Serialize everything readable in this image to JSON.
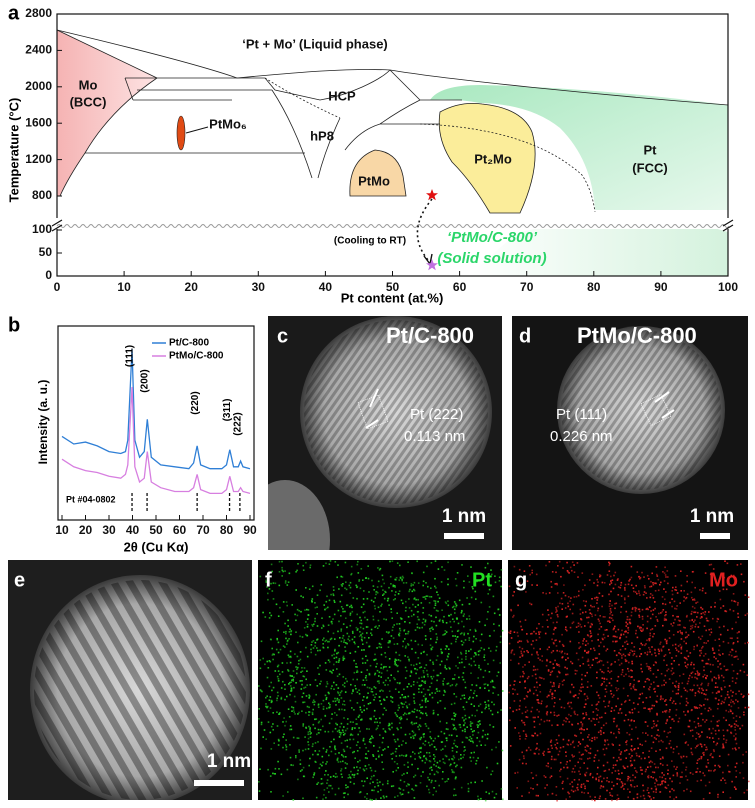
{
  "panel_a": {
    "label": "a",
    "title": "‘Pt + Mo’ (Liquid phase)",
    "xlabel": "Pt content (at.%)",
    "ylabel": "Temperature (°C)",
    "xlim": [
      0,
      100
    ],
    "xticks": [
      0,
      10,
      20,
      30,
      40,
      50,
      60,
      70,
      80,
      90,
      100
    ],
    "ylim_upper": [
      800,
      2800
    ],
    "yticks_upper": [
      800,
      1200,
      1600,
      2000,
      2400,
      2800
    ],
    "ylim_lower": [
      0,
      100
    ],
    "yticks_lower": [
      0,
      50,
      100
    ],
    "regions": {
      "mo_bcc": [
        "Mo",
        "(BCC)"
      ],
      "ptmo6": "PtMo₆",
      "hcp": "HCP",
      "hp8": "hP8",
      "ptmo": "PtMo",
      "pt2mo": "Pt₂Mo",
      "pt_fcc": [
        "Pt",
        "(FCC)"
      ]
    },
    "cooling": "(Cooling to RT)",
    "sample": [
      "‘PtMo/C-800’",
      "(Solid solution)"
    ]
  },
  "panel_b": {
    "type": "line",
    "label": "b",
    "xlabel": "2θ (Cu Kα)",
    "ylabel": "Intensity (a. u.)",
    "xlim": [
      10,
      90
    ],
    "xticks": [
      10,
      20,
      30,
      40,
      50,
      60,
      70,
      80,
      90
    ],
    "ylim": [
      0,
      10
    ],
    "x": [
      10,
      15,
      20,
      25,
      30,
      35,
      37,
      38,
      39.8,
      41,
      43,
      45,
      46.3,
      48,
      52,
      58,
      64,
      66,
      67.5,
      69,
      73,
      78,
      80,
      81.4,
      83,
      85,
      86,
      87,
      90
    ],
    "series": [
      {
        "name": "Pt/C-800",
        "color": "#2f7fd6",
        "values": [
          4.4,
          4.0,
          4.1,
          3.9,
          3.6,
          3.5,
          3.6,
          4.2,
          9.0,
          4.2,
          3.3,
          3.6,
          5.3,
          3.3,
          2.9,
          2.8,
          2.7,
          3.0,
          3.9,
          2.9,
          2.7,
          2.7,
          2.9,
          3.7,
          2.8,
          2.8,
          3.1,
          2.8,
          2.7
        ]
      },
      {
        "name": "PtMo/C-800",
        "color": "#d77fe0",
        "values": [
          3.2,
          2.8,
          2.6,
          2.5,
          2.3,
          2.2,
          2.4,
          2.9,
          7.0,
          2.8,
          2.0,
          2.2,
          3.6,
          2.0,
          1.7,
          1.5,
          1.5,
          1.7,
          2.4,
          1.6,
          1.4,
          1.4,
          1.6,
          2.3,
          1.5,
          1.5,
          1.7,
          1.5,
          1.4
        ]
      }
    ],
    "reference": {
      "name": "Pt #04-0802",
      "positions": [
        39.8,
        46.2,
        67.5,
        81.3,
        85.7
      ]
    },
    "peak_labels": [
      "(111)",
      "(200)",
      "(220)",
      "(311)",
      "(222)"
    ]
  },
  "panel_c": {
    "label": "c",
    "title": "Pt/C-800",
    "lattice": [
      "Pt (222)",
      "0.113 nm"
    ],
    "scale": "1 nm"
  },
  "panel_d": {
    "label": "d",
    "title": "PtMo/C-800",
    "lattice": [
      "Pt (111)",
      "0.226 nm"
    ],
    "scale": "1 nm"
  },
  "panel_e": {
    "label": "e",
    "scale": "1 nm"
  },
  "panel_f": {
    "label": "f",
    "element": "Pt"
  },
  "panel_g": {
    "label": "g",
    "element": "Mo"
  }
}
